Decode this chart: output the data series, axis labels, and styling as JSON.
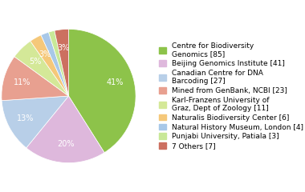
{
  "labels": [
    "Centre for Biodiversity\nGenomics [85]",
    "Beijing Genomics Institute [41]",
    "Canadian Centre for DNA\nBarcoding [27]",
    "Mined from GenBank, NCBI [23]",
    "Karl-Franzens University of\nGraz, Dept of Zoology [11]",
    "Naturalis Biodiversity Center [6]",
    "Natural History Museum, London [4]",
    "Punjabi University, Patiala [3]",
    "7 Others [7]"
  ],
  "values": [
    85,
    41,
    27,
    23,
    11,
    6,
    4,
    3,
    7
  ],
  "colors": [
    "#8dc34a",
    "#deb8dc",
    "#b8cfe8",
    "#e8a090",
    "#d4e898",
    "#f5c87a",
    "#a8c8e8",
    "#c8e898",
    "#cc7060"
  ],
  "legend_fontsize": 6.5,
  "pct_fontsize": 7,
  "pct_color": "white",
  "startangle": 90,
  "figsize": [
    3.8,
    2.4
  ],
  "dpi": 100
}
